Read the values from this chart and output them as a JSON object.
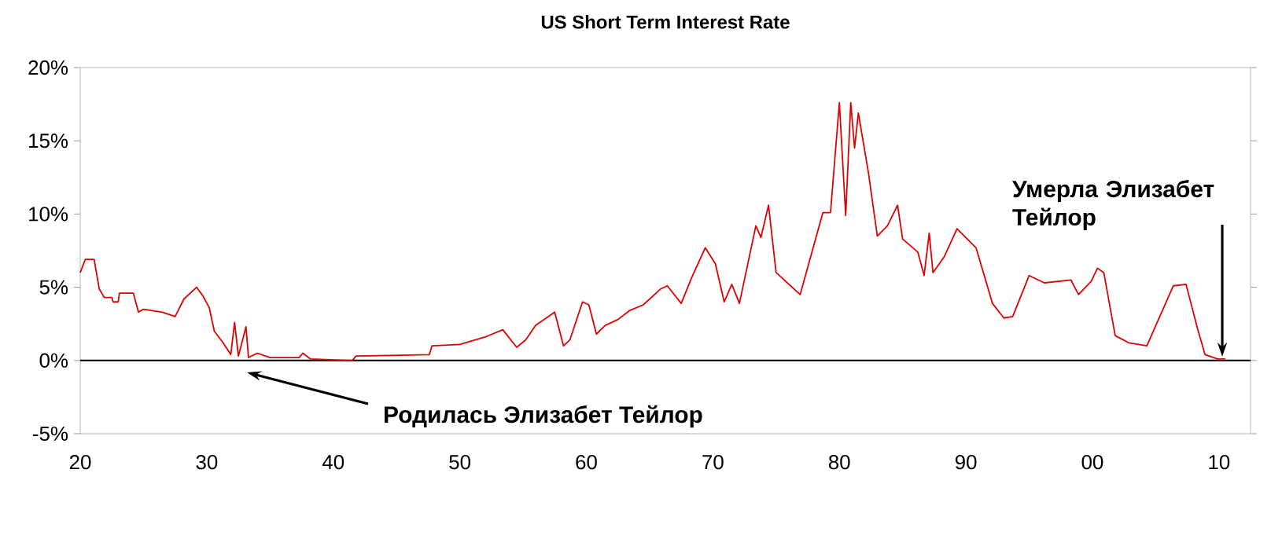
{
  "chart_data": {
    "type": "line",
    "title": "US Short Term Interest Rate",
    "x": [
      1920.0,
      1920.4,
      1921.1,
      1921.5,
      1921.9,
      1922.5,
      1922.6,
      1923.0,
      1923.1,
      1924.2,
      1924.6,
      1925.0,
      1926.5,
      1927.5,
      1928.2,
      1929.2,
      1929.7,
      1930.2,
      1930.6,
      1931.3,
      1931.9,
      1932.2,
      1932.5,
      1933.1,
      1933.3,
      1934.0,
      1935.0,
      1937.3,
      1937.6,
      1938.2,
      1941.5,
      1941.8,
      1947.6,
      1947.8,
      1950.0,
      1952.0,
      1953.4,
      1954.5,
      1955.2,
      1956.0,
      1957.5,
      1958.2,
      1958.7,
      1959.7,
      1960.2,
      1960.8,
      1961.5,
      1962.5,
      1963.4,
      1964.5,
      1965.9,
      1966.4,
      1967.5,
      1968.3,
      1969.4,
      1970.2,
      1970.9,
      1971.5,
      1972.1,
      1973.4,
      1973.8,
      1974.4,
      1975.0,
      1976.9,
      1978.7,
      1979.3,
      1980.0,
      1980.5,
      1980.9,
      1981.2,
      1981.5,
      1982.3,
      1983.0,
      1983.8,
      1984.6,
      1985.0,
      1986.2,
      1986.7,
      1987.1,
      1987.4,
      1988.3,
      1989.3,
      1990.8,
      1992.1,
      1993.0,
      1993.7,
      1995.0,
      1996.2,
      1998.3,
      1998.9,
      1999.9,
      2000.4,
      2000.9,
      2001.8,
      2002.9,
      2004.3,
      2006.4,
      2007.4,
      2008.3,
      2008.9,
      2009.9,
      2010.5
    ],
    "series": [
      {
        "color": "#e00000",
        "values": [
          6.0,
          6.9,
          6.9,
          4.9,
          4.3,
          4.3,
          4.0,
          4.0,
          4.6,
          4.6,
          3.3,
          3.5,
          3.3,
          3.0,
          4.2,
          5.0,
          4.4,
          3.6,
          2.0,
          1.2,
          0.4,
          2.6,
          0.3,
          2.3,
          0.2,
          0.5,
          0.2,
          0.2,
          0.5,
          0.1,
          0.0,
          0.3,
          0.4,
          1.0,
          1.1,
          1.6,
          2.1,
          0.9,
          1.4,
          2.4,
          3.3,
          1.0,
          1.4,
          4.0,
          3.8,
          1.8,
          2.4,
          2.8,
          3.4,
          3.8,
          4.9,
          5.1,
          3.9,
          5.6,
          7.7,
          6.6,
          4.0,
          5.2,
          3.9,
          9.2,
          8.4,
          10.6,
          6.0,
          4.5,
          10.1,
          10.1,
          17.6,
          9.9,
          17.6,
          14.5,
          16.9,
          12.8,
          8.5,
          9.2,
          10.6,
          8.3,
          7.4,
          5.8,
          8.7,
          6.0,
          7.1,
          9.0,
          7.7,
          3.9,
          2.9,
          3.0,
          5.8,
          5.3,
          5.5,
          4.5,
          5.4,
          6.3,
          6.0,
          1.7,
          1.2,
          1.0,
          5.1,
          5.2,
          2.2,
          0.4,
          0.1,
          0.1
        ]
      }
    ],
    "xlim": [
      1920,
      2012.5
    ],
    "xticks": [
      {
        "value": 1920,
        "label": "20"
      },
      {
        "value": 1930,
        "label": "30"
      },
      {
        "value": 1940,
        "label": "40"
      },
      {
        "value": 1950,
        "label": "50"
      },
      {
        "value": 1960,
        "label": "60"
      },
      {
        "value": 1970,
        "label": "70"
      },
      {
        "value": 1980,
        "label": "80"
      },
      {
        "value": 1990,
        "label": "90"
      },
      {
        "value": 2000,
        "label": "00"
      },
      {
        "value": 2010,
        "label": "10"
      }
    ],
    "ylim": [
      -5,
      20
    ],
    "yticks": [
      {
        "value": -5,
        "label": "-5%"
      },
      {
        "value": 0,
        "label": "0%"
      },
      {
        "value": 5,
        "label": "5%"
      },
      {
        "value": 10,
        "label": "10%"
      },
      {
        "value": 15,
        "label": "15%"
      },
      {
        "value": 20,
        "label": "20%"
      }
    ],
    "ref_lines": [
      {
        "axis": "y",
        "value": 0,
        "color": "#000000"
      }
    ],
    "annotations": [
      "Родилась Элизабет Тейлор",
      "Умерла Элизабет Тейлор"
    ],
    "grid": false,
    "marker": "none",
    "line_style": "solid"
  }
}
